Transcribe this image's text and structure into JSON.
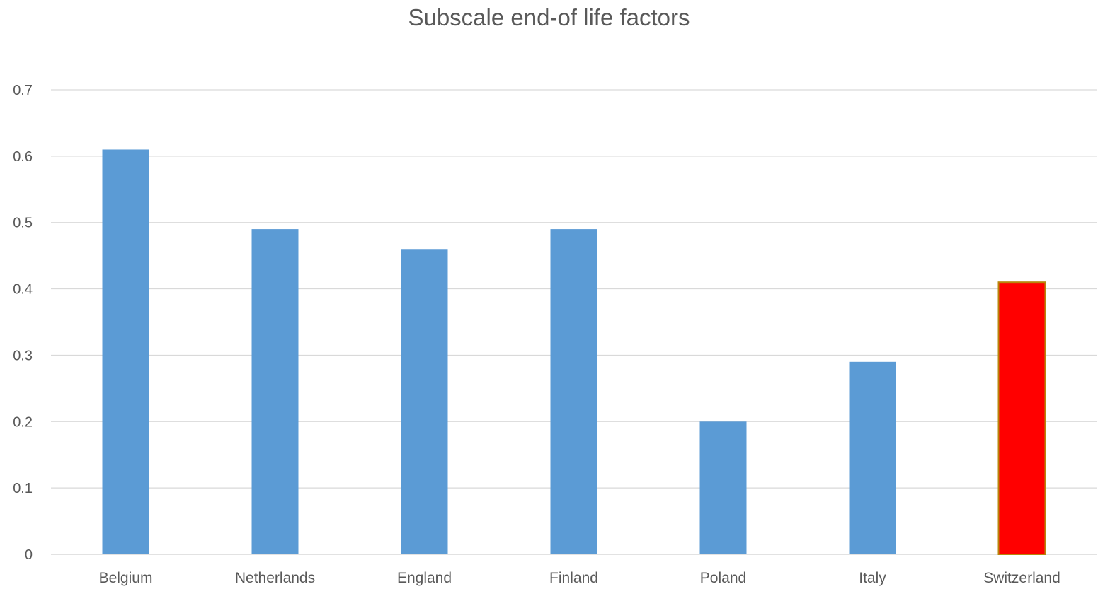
{
  "chart_data": {
    "type": "bar",
    "title": "Subscale end-of life factors",
    "xlabel": "",
    "ylabel": "",
    "categories": [
      "Belgium",
      "Netherlands",
      "England",
      "Finland",
      "Poland",
      "Italy",
      "Switzerland"
    ],
    "series": [
      {
        "values": [
          0.61,
          0.49,
          0.46,
          0.49,
          0.2,
          0.29,
          0.41
        ],
        "colors": [
          "#5B9BD5",
          "#5B9BD5",
          "#5B9BD5",
          "#5B9BD5",
          "#5B9BD5",
          "#5B9BD5",
          "#FF0000"
        ]
      }
    ],
    "highlight_border_color": "#B8860B",
    "ylim": [
      0,
      0.7
    ],
    "yticks": [
      "0",
      "0.1",
      "0.2",
      "0.3",
      "0.4",
      "0.5",
      "0.6",
      "0.7"
    ],
    "grid": true,
    "legend": "none",
    "gridline_color": "#D9D9D9",
    "text_color": "#595959"
  }
}
